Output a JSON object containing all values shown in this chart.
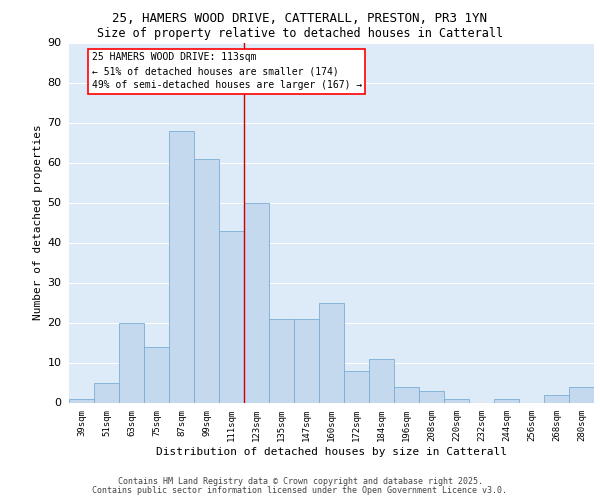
{
  "title_line1": "25, HAMERS WOOD DRIVE, CATTERALL, PRESTON, PR3 1YN",
  "title_line2": "Size of property relative to detached houses in Catterall",
  "xlabel": "Distribution of detached houses by size in Catterall",
  "ylabel": "Number of detached properties",
  "categories": [
    "39sqm",
    "51sqm",
    "63sqm",
    "75sqm",
    "87sqm",
    "99sqm",
    "111sqm",
    "123sqm",
    "135sqm",
    "147sqm",
    "160sqm",
    "172sqm",
    "184sqm",
    "196sqm",
    "208sqm",
    "220sqm",
    "232sqm",
    "244sqm",
    "256sqm",
    "268sqm",
    "280sqm"
  ],
  "values": [
    1,
    5,
    20,
    14,
    68,
    61,
    43,
    50,
    21,
    21,
    25,
    8,
    11,
    4,
    3,
    1,
    0,
    1,
    0,
    2,
    4
  ],
  "bar_color": "#c5d9ee",
  "bar_edge_color": "#7aaed4",
  "bg_color": "#ddeaf7",
  "grid_color": "#ffffff",
  "annotation_text": "25 HAMERS WOOD DRIVE: 113sqm\n← 51% of detached houses are smaller (174)\n49% of semi-detached houses are larger (167) →",
  "vline_x": 6.5,
  "vline_color": "#cc0000",
  "ylim": [
    0,
    90
  ],
  "yticks": [
    0,
    10,
    20,
    30,
    40,
    50,
    60,
    70,
    80,
    90
  ],
  "footer_line1": "Contains HM Land Registry data © Crown copyright and database right 2025.",
  "footer_line2": "Contains public sector information licensed under the Open Government Licence v3.0.",
  "title_fontsize": 9,
  "subtitle_fontsize": 8.5,
  "ylabel_fontsize": 8,
  "xlabel_fontsize": 8,
  "ytick_fontsize": 8,
  "xtick_fontsize": 6.5,
  "annot_fontsize": 7,
  "footer_fontsize": 6
}
